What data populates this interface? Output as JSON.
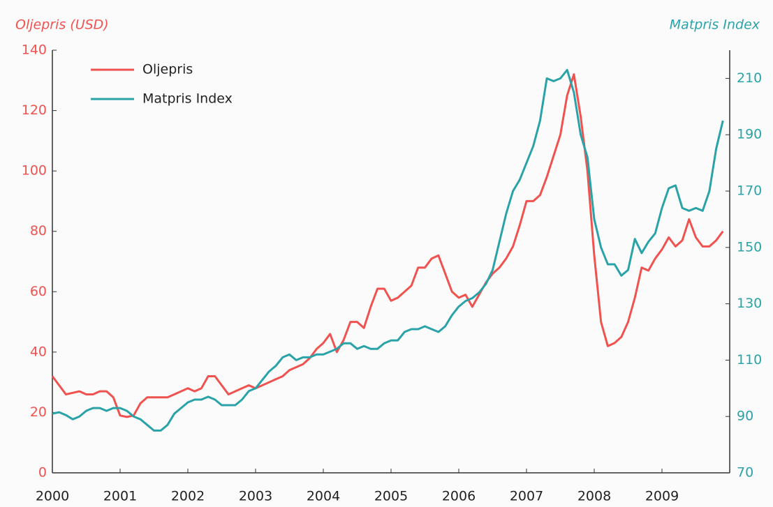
{
  "chart_data": {
    "type": "line",
    "ylabel": "Oljepris (USD)",
    "y2label": "Matpris Index",
    "x": [
      2000,
      2000.1,
      2000.2,
      2000.3,
      2000.4,
      2000.5,
      2000.6,
      2000.7,
      2000.8,
      2000.9,
      2001,
      2001.1,
      2001.2,
      2001.3,
      2001.4,
      2001.5,
      2001.6,
      2001.7,
      2001.8,
      2001.9,
      2002,
      2002.1,
      2002.2,
      2002.3,
      2002.4,
      2002.5,
      2002.6,
      2002.7,
      2002.8,
      2002.9,
      2003,
      2003.1,
      2003.2,
      2003.3,
      2003.4,
      2003.5,
      2003.6,
      2003.7,
      2003.8,
      2003.9,
      2004,
      2004.1,
      2004.2,
      2004.3,
      2004.4,
      2004.5,
      2004.6,
      2004.7,
      2004.8,
      2004.9,
      2005,
      2005.1,
      2005.2,
      2005.3,
      2005.4,
      2005.5,
      2005.6,
      2005.7,
      2005.8,
      2005.9,
      2006,
      2006.1,
      2006.2,
      2006.3,
      2006.4,
      2006.5,
      2006.6,
      2006.7,
      2006.8,
      2006.9,
      2007,
      2007.1,
      2007.2,
      2007.3,
      2007.4,
      2007.5,
      2007.6,
      2007.7,
      2007.8,
      2007.9,
      2008,
      2008.1,
      2008.2,
      2008.3,
      2008.4,
      2008.5,
      2008.6,
      2008.7,
      2008.8,
      2008.9,
      2009,
      2009.1,
      2009.2,
      2009.3,
      2009.4,
      2009.5,
      2009.6,
      2009.7,
      2009.8,
      2009.9
    ],
    "series": [
      {
        "name": "Oljepris",
        "color": "#f0524f",
        "axis": "y",
        "values": [
          32,
          29,
          26,
          26.5,
          27,
          26,
          26,
          27,
          27,
          25,
          19,
          18.5,
          19,
          23,
          25,
          25,
          25,
          25,
          26,
          27,
          28,
          27,
          28,
          32,
          32,
          29,
          26,
          27,
          28,
          29,
          28,
          29,
          30,
          31,
          32,
          34,
          35,
          36,
          38,
          41,
          43,
          46,
          40,
          44,
          50,
          50,
          48,
          55,
          61,
          61,
          57,
          58,
          60,
          62,
          68,
          68,
          71,
          72,
          66,
          60,
          58,
          59,
          55,
          59,
          63,
          66,
          68,
          71,
          75,
          82,
          90,
          90,
          92,
          98,
          105,
          112,
          125,
          132,
          118,
          100,
          72,
          50,
          42,
          43,
          45,
          50,
          58,
          68,
          67,
          71,
          74,
          78,
          75,
          77,
          84,
          78,
          75,
          75,
          77,
          80
        ]
      },
      {
        "name": "Matpris Index",
        "color": "#2aa3a8",
        "axis": "y2",
        "values": [
          91,
          91.5,
          90.5,
          89,
          90,
          92,
          93,
          93,
          92,
          93,
          93,
          92,
          90,
          89,
          87,
          85,
          85,
          87,
          91,
          93,
          95,
          96,
          96,
          97,
          96,
          94,
          94,
          94,
          96,
          99,
          100,
          103,
          106,
          108,
          111,
          112,
          110,
          111,
          111,
          112,
          112,
          113,
          114,
          116,
          116,
          114,
          115,
          114,
          114,
          116,
          117,
          117,
          120,
          121,
          121,
          122,
          121,
          120,
          122,
          126,
          129,
          131,
          132,
          134,
          137,
          142,
          152,
          162,
          170,
          174,
          180,
          186,
          195,
          210,
          209,
          210,
          213,
          205,
          190,
          182,
          160,
          150,
          144,
          144,
          140,
          142,
          153,
          148,
          152,
          155,
          164,
          171,
          172,
          164,
          163,
          164,
          163,
          170,
          185,
          195
        ]
      }
    ],
    "xlim": [
      2000,
      2010
    ],
    "xticks": [
      2000,
      2001,
      2002,
      2003,
      2004,
      2005,
      2006,
      2007,
      2008,
      2009
    ],
    "ylim": [
      0,
      140
    ],
    "yticks": [
      0,
      20,
      40,
      60,
      80,
      100,
      120,
      140
    ],
    "y2lim": [
      70,
      220
    ],
    "y2ticks": [
      70,
      90,
      110,
      130,
      150,
      170,
      190,
      210
    ],
    "legend": "upper-left"
  }
}
